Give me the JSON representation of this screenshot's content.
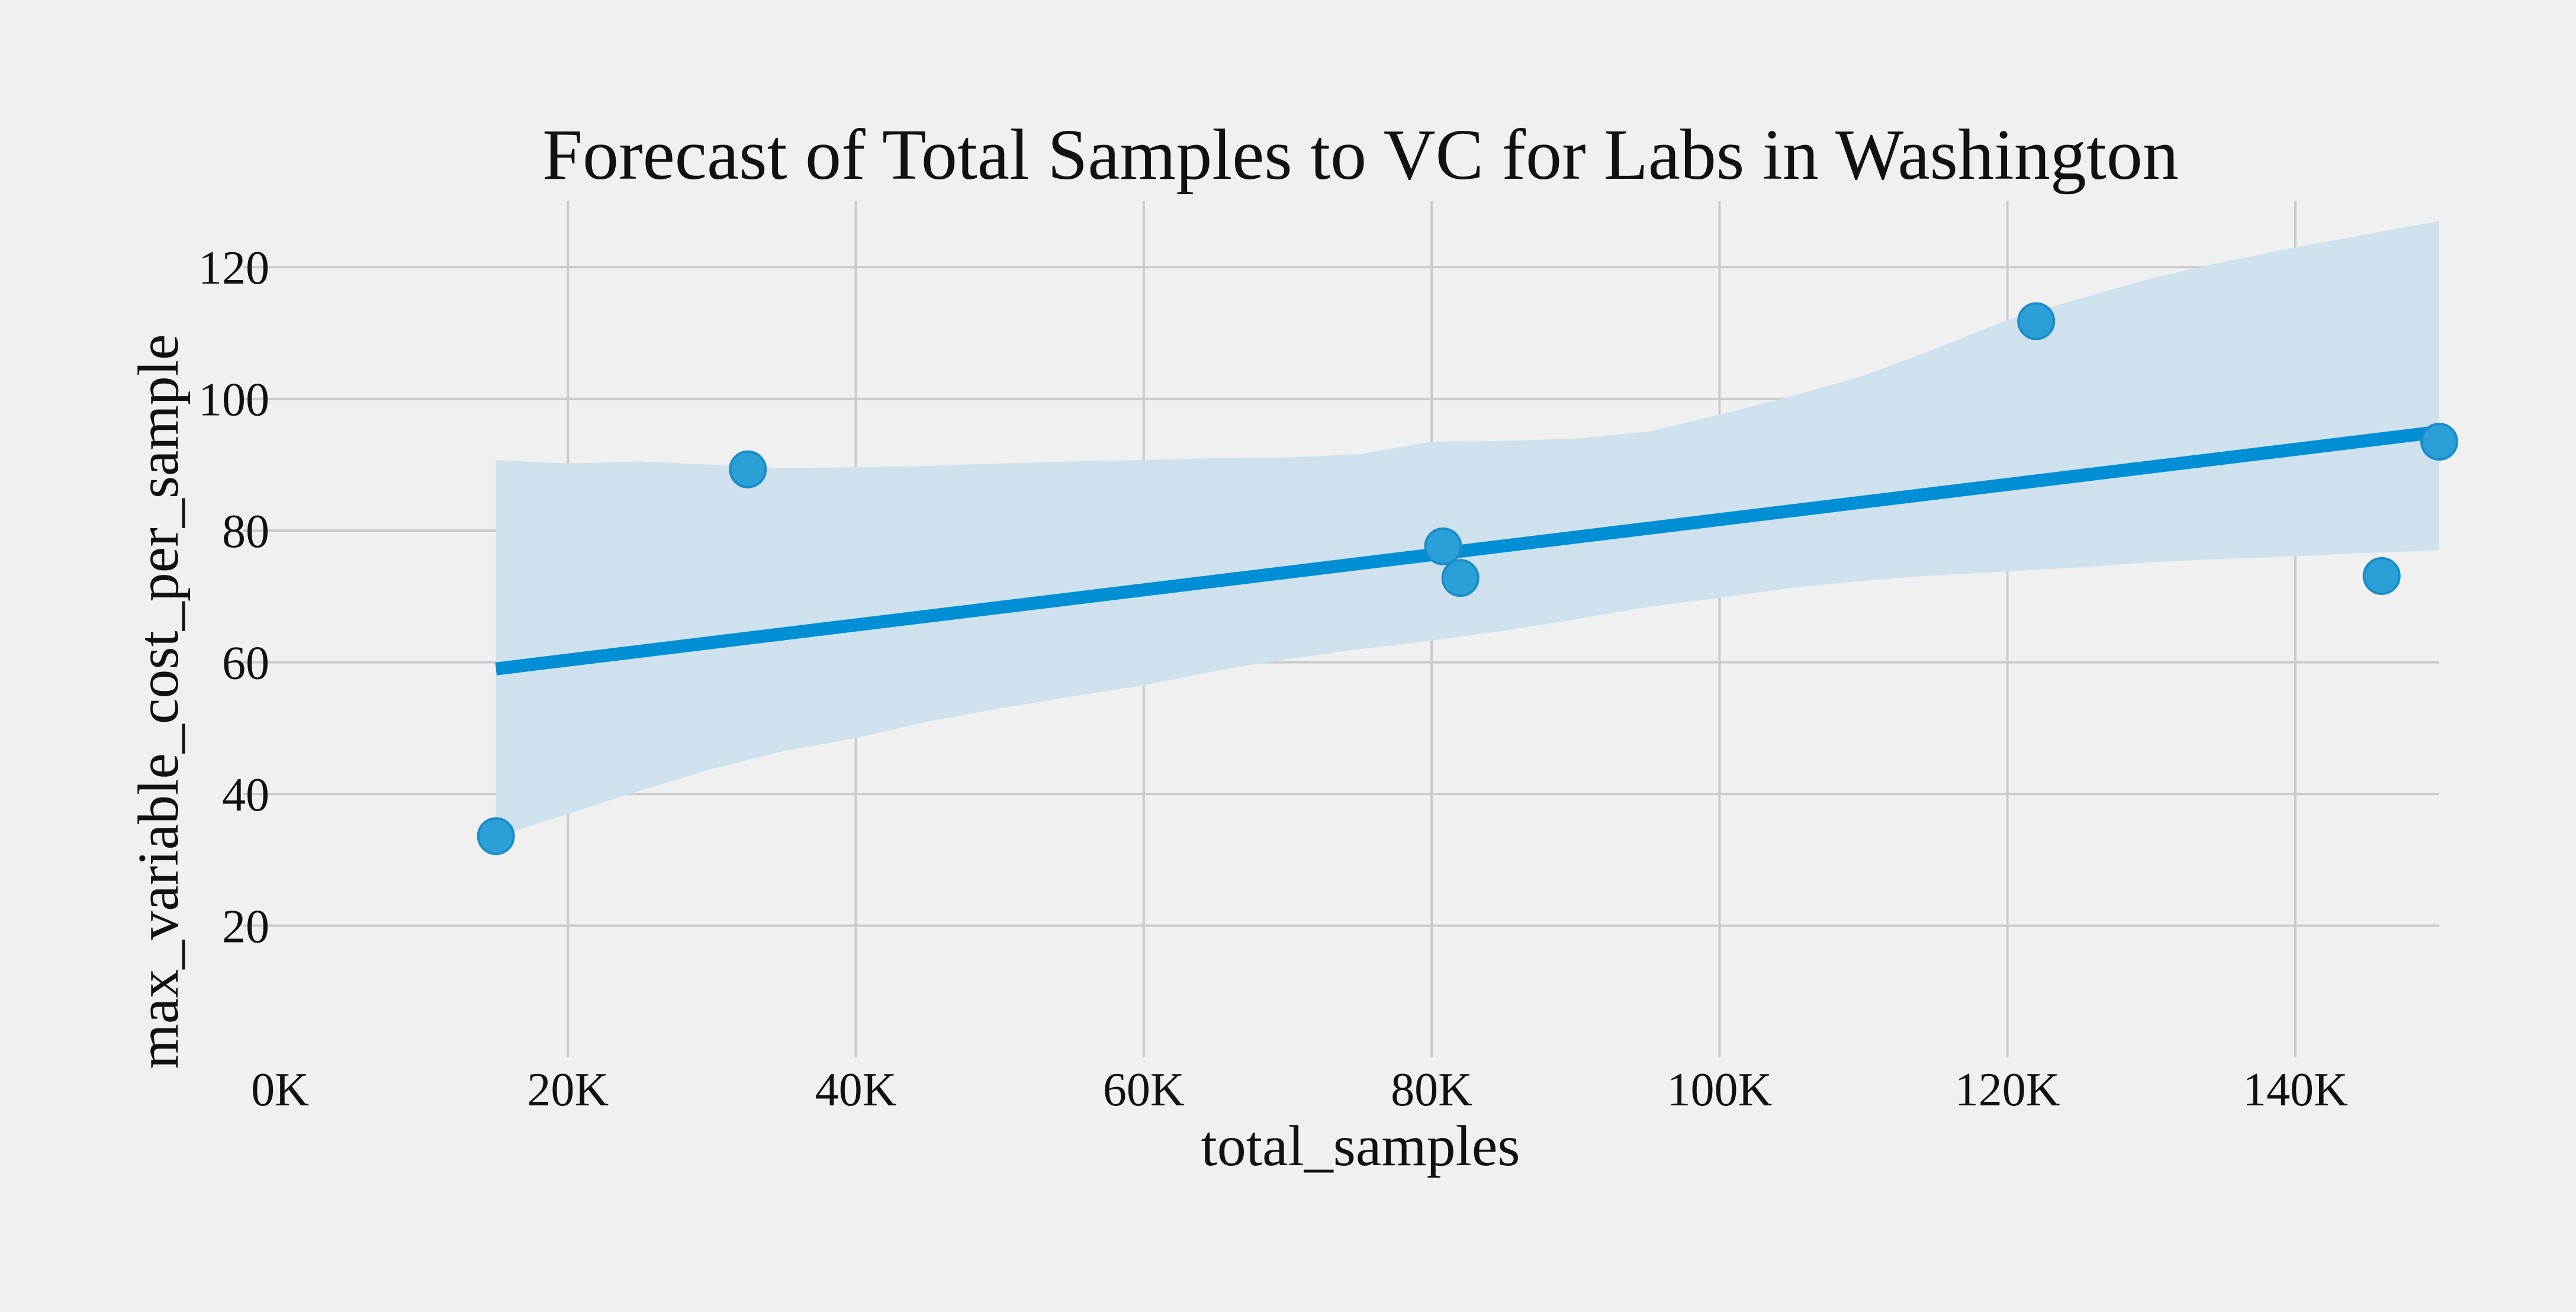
{
  "chart_data": {
    "type": "scatter",
    "title": "Forecast of Total Samples to VC for Labs in Washington",
    "xlabel": "total_samples",
    "ylabel": "max_variable_cost_per_sample",
    "xlim": [
      0,
      150000
    ],
    "ylim": [
      0,
      130
    ],
    "x_ticks": [
      0,
      20000,
      40000,
      60000,
      80000,
      100000,
      120000,
      140000
    ],
    "x_tick_labels": [
      "0K",
      "20K",
      "40K",
      "60K",
      "80K",
      "100K",
      "120K",
      "140K"
    ],
    "y_ticks": [
      20,
      40,
      60,
      80,
      100,
      120
    ],
    "y_tick_labels": [
      "20",
      "40",
      "60",
      "80",
      "100",
      "120"
    ],
    "grid": true,
    "points": [
      {
        "x": 15000,
        "y": 33.6
      },
      {
        "x": 32500,
        "y": 89.3
      },
      {
        "x": 80800,
        "y": 77.6
      },
      {
        "x": 82000,
        "y": 72.8
      },
      {
        "x": 122000,
        "y": 111.8
      },
      {
        "x": 146000,
        "y": 73.1
      },
      {
        "x": 150000,
        "y": 93.5
      }
    ],
    "regression_line": {
      "x": [
        15000,
        150000
      ],
      "y": [
        59.0,
        95.0
      ]
    },
    "confidence_band": {
      "x": [
        15000,
        20000,
        25000,
        30000,
        35000,
        40000,
        45000,
        50000,
        55000,
        60000,
        65000,
        70000,
        75000,
        80000,
        85000,
        90000,
        95000,
        100000,
        105000,
        110000,
        115000,
        120000,
        125000,
        130000,
        135000,
        140000,
        145000,
        150000
      ],
      "upper": [
        90.7,
        90.2,
        90.5,
        90.0,
        89.5,
        89.6,
        89.8,
        90.2,
        90.5,
        90.7,
        91.0,
        91.1,
        91.6,
        93.5,
        93.6,
        94.0,
        95.0,
        97.6,
        100.4,
        103.5,
        107.6,
        112.0,
        115.2,
        118.3,
        120.8,
        123.0,
        125.0,
        127.0
      ],
      "lower": [
        33.5,
        37.0,
        40.5,
        43.8,
        46.5,
        48.5,
        51.0,
        53.0,
        54.8,
        56.5,
        58.7,
        60.5,
        62.0,
        63.3,
        64.8,
        66.5,
        68.4,
        69.8,
        71.3,
        72.4,
        73.2,
        73.8,
        74.4,
        75.2,
        75.7,
        76.1,
        76.6,
        77.0
      ]
    },
    "colors": {
      "line": "#008fd5",
      "points": "#2a9fd8",
      "band": "#cfe1ec",
      "background": "#f0f0f0",
      "grid": "#cbcbcb"
    }
  }
}
